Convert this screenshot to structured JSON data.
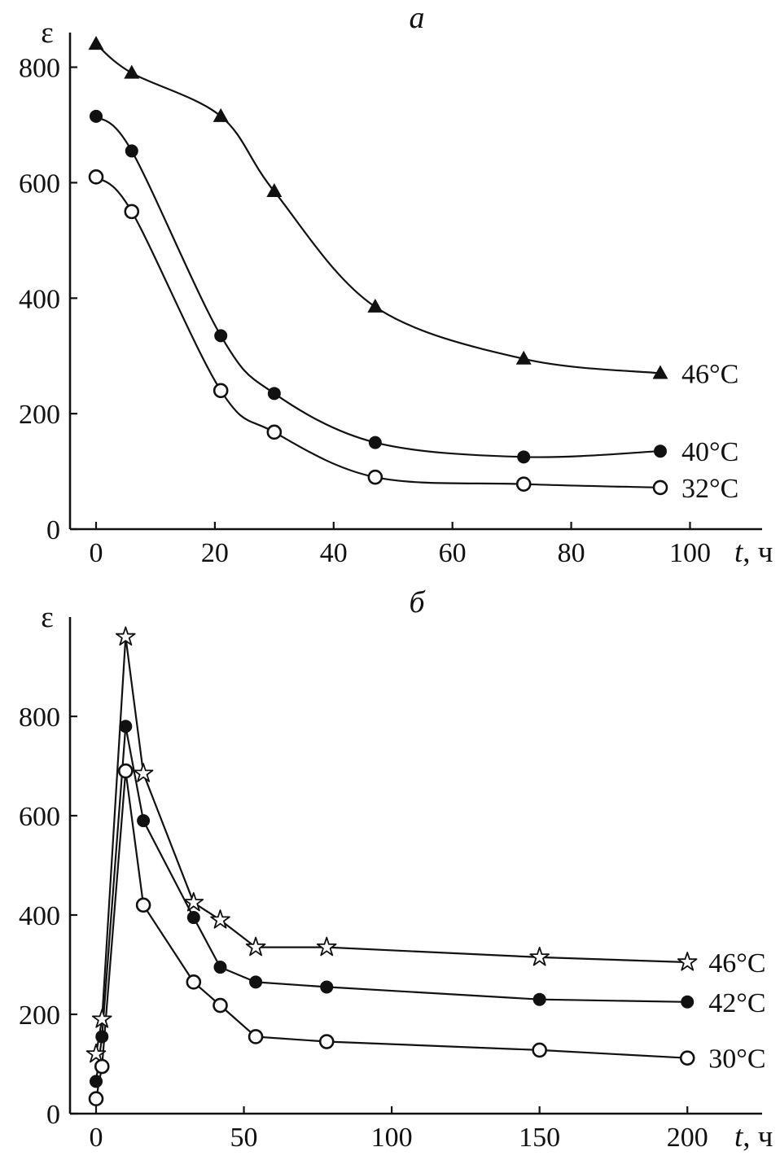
{
  "figure": {
    "description": "Two-panel line chart, epsilon versus time",
    "ink_color": "#111111",
    "background_color": "#ffffff"
  },
  "chart_data": [
    {
      "type": "line",
      "panel_label": "a",
      "ylabel": "ε",
      "xlabel": "t, ч",
      "xlim": [
        0,
        112
      ],
      "ylim": [
        0,
        860
      ],
      "xticks": [
        0,
        20,
        40,
        60,
        80,
        100
      ],
      "yticks": [
        0,
        200,
        400,
        600,
        800
      ],
      "grid": false,
      "legend_position": "right-of-last-point",
      "smooth": true,
      "series": [
        {
          "name": "46°C",
          "marker": "triangle-filled",
          "x": [
            0,
            6,
            21,
            30,
            47,
            72,
            95
          ],
          "y": [
            840,
            790,
            715,
            585,
            385,
            295,
            270
          ]
        },
        {
          "name": "40°C",
          "marker": "circle-filled",
          "x": [
            0,
            6,
            21,
            30,
            47,
            72,
            95
          ],
          "y": [
            715,
            655,
            335,
            235,
            150,
            125,
            135
          ]
        },
        {
          "name": "32°C",
          "marker": "circle-open",
          "x": [
            0,
            6,
            21,
            30,
            47,
            72,
            95
          ],
          "y": [
            610,
            550,
            240,
            168,
            90,
            78,
            72
          ]
        }
      ]
    },
    {
      "type": "line",
      "panel_label": "б",
      "ylabel": "ε",
      "xlabel": "t, ч",
      "xlim": [
        0,
        225
      ],
      "ylim": [
        0,
        1000
      ],
      "xticks": [
        0,
        50,
        100,
        150,
        200
      ],
      "yticks": [
        0,
        200,
        400,
        600,
        800
      ],
      "grid": false,
      "legend_position": "right-of-last-point",
      "smooth": false,
      "series": [
        {
          "name": "46°C",
          "marker": "star-open",
          "x": [
            0,
            2,
            10,
            16,
            33,
            42,
            54,
            78,
            150,
            200
          ],
          "y": [
            120,
            190,
            960,
            685,
            425,
            390,
            335,
            335,
            315,
            305
          ]
        },
        {
          "name": "42°C",
          "marker": "circle-filled",
          "x": [
            0,
            2,
            10,
            16,
            33,
            42,
            54,
            78,
            150,
            200
          ],
          "y": [
            65,
            155,
            780,
            590,
            395,
            295,
            265,
            255,
            230,
            225
          ]
        },
        {
          "name": "30°C",
          "marker": "circle-open",
          "x": [
            0,
            2,
            10,
            16,
            33,
            42,
            54,
            78,
            150,
            200
          ],
          "y": [
            30,
            95,
            690,
            420,
            265,
            218,
            155,
            145,
            128,
            112
          ]
        }
      ]
    }
  ]
}
